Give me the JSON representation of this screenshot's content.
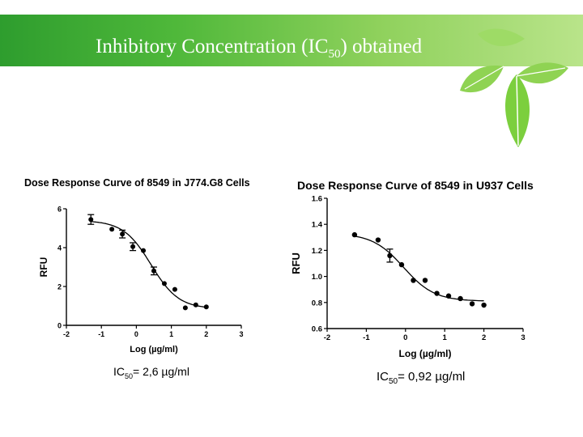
{
  "slide": {
    "title_prefix": "Inhibitory Concentration (IC",
    "title_subscript": "50",
    "title_suffix": ") obtained"
  },
  "colors": {
    "banner": "#4fb83a",
    "leaf": "#7ccf3e",
    "marker": "#000000"
  },
  "chart_data": [
    {
      "type": "scatter",
      "title": "Dose Response Curve of 8549 in J774.G8 Cells",
      "xlabel": "Log (µg/ml)",
      "ylabel": "RFU",
      "xlim": [
        -2,
        3
      ],
      "ylim": [
        0,
        6
      ],
      "xticks": [
        -2,
        -1,
        0,
        1,
        2,
        3
      ],
      "yticks": [
        0,
        2,
        4,
        6
      ],
      "points": [
        {
          "x": -1.3,
          "y": 5.45,
          "err": 0.25
        },
        {
          "x": -0.7,
          "y": 4.95,
          "err": 0
        },
        {
          "x": -0.4,
          "y": 4.7,
          "err": 0.2
        },
        {
          "x": -0.1,
          "y": 4.05,
          "err": 0.2
        },
        {
          "x": 0.2,
          "y": 3.85,
          "err": 0
        },
        {
          "x": 0.5,
          "y": 2.8,
          "err": 0.2
        },
        {
          "x": 0.8,
          "y": 2.15,
          "err": 0
        },
        {
          "x": 1.1,
          "y": 1.85,
          "err": 0
        },
        {
          "x": 1.4,
          "y": 0.9,
          "err": 0
        },
        {
          "x": 1.7,
          "y": 1.05,
          "err": 0
        },
        {
          "x": 2.0,
          "y": 0.95,
          "err": 0
        }
      ],
      "fit": {
        "top": 5.4,
        "bottom": 0.85,
        "logIC50": 0.42,
        "hill": 1.1
      },
      "ic50_prefix": "IC",
      "ic50_subscript": "50",
      "ic50_suffix": "= 2,6 µg/ml"
    },
    {
      "type": "scatter",
      "title": "Dose Response Curve of 8549 in U937 Cells",
      "xlabel": "Log (µg/ml)",
      "ylabel": "RFU",
      "xlim": [
        -2,
        3
      ],
      "ylim": [
        0.6,
        1.6
      ],
      "xticks": [
        -2,
        -1,
        0,
        1,
        2,
        3
      ],
      "yticks": [
        0.6,
        0.8,
        1.0,
        1.2,
        1.4,
        1.6
      ],
      "ytick_labels": [
        "0.6",
        "0.8",
        "1.0",
        "1.2",
        "1.4",
        "1.6"
      ],
      "points": [
        {
          "x": -1.3,
          "y": 1.32,
          "err": 0
        },
        {
          "x": -0.7,
          "y": 1.28,
          "err": 0
        },
        {
          "x": -0.4,
          "y": 1.16,
          "err": 0.05
        },
        {
          "x": -0.1,
          "y": 1.09,
          "err": 0
        },
        {
          "x": 0.2,
          "y": 0.97,
          "err": 0
        },
        {
          "x": 0.5,
          "y": 0.97,
          "err": 0
        },
        {
          "x": 0.8,
          "y": 0.87,
          "err": 0
        },
        {
          "x": 1.1,
          "y": 0.85,
          "err": 0
        },
        {
          "x": 1.4,
          "y": 0.83,
          "err": 0
        },
        {
          "x": 1.7,
          "y": 0.79,
          "err": 0
        },
        {
          "x": 2.0,
          "y": 0.78,
          "err": 0
        }
      ],
      "fit": {
        "top": 1.33,
        "bottom": 0.81,
        "logIC50": -0.05,
        "hill": 1.1
      },
      "ic50_prefix": "IC",
      "ic50_subscript": "50",
      "ic50_suffix": "= 0,92 µg/ml"
    }
  ]
}
